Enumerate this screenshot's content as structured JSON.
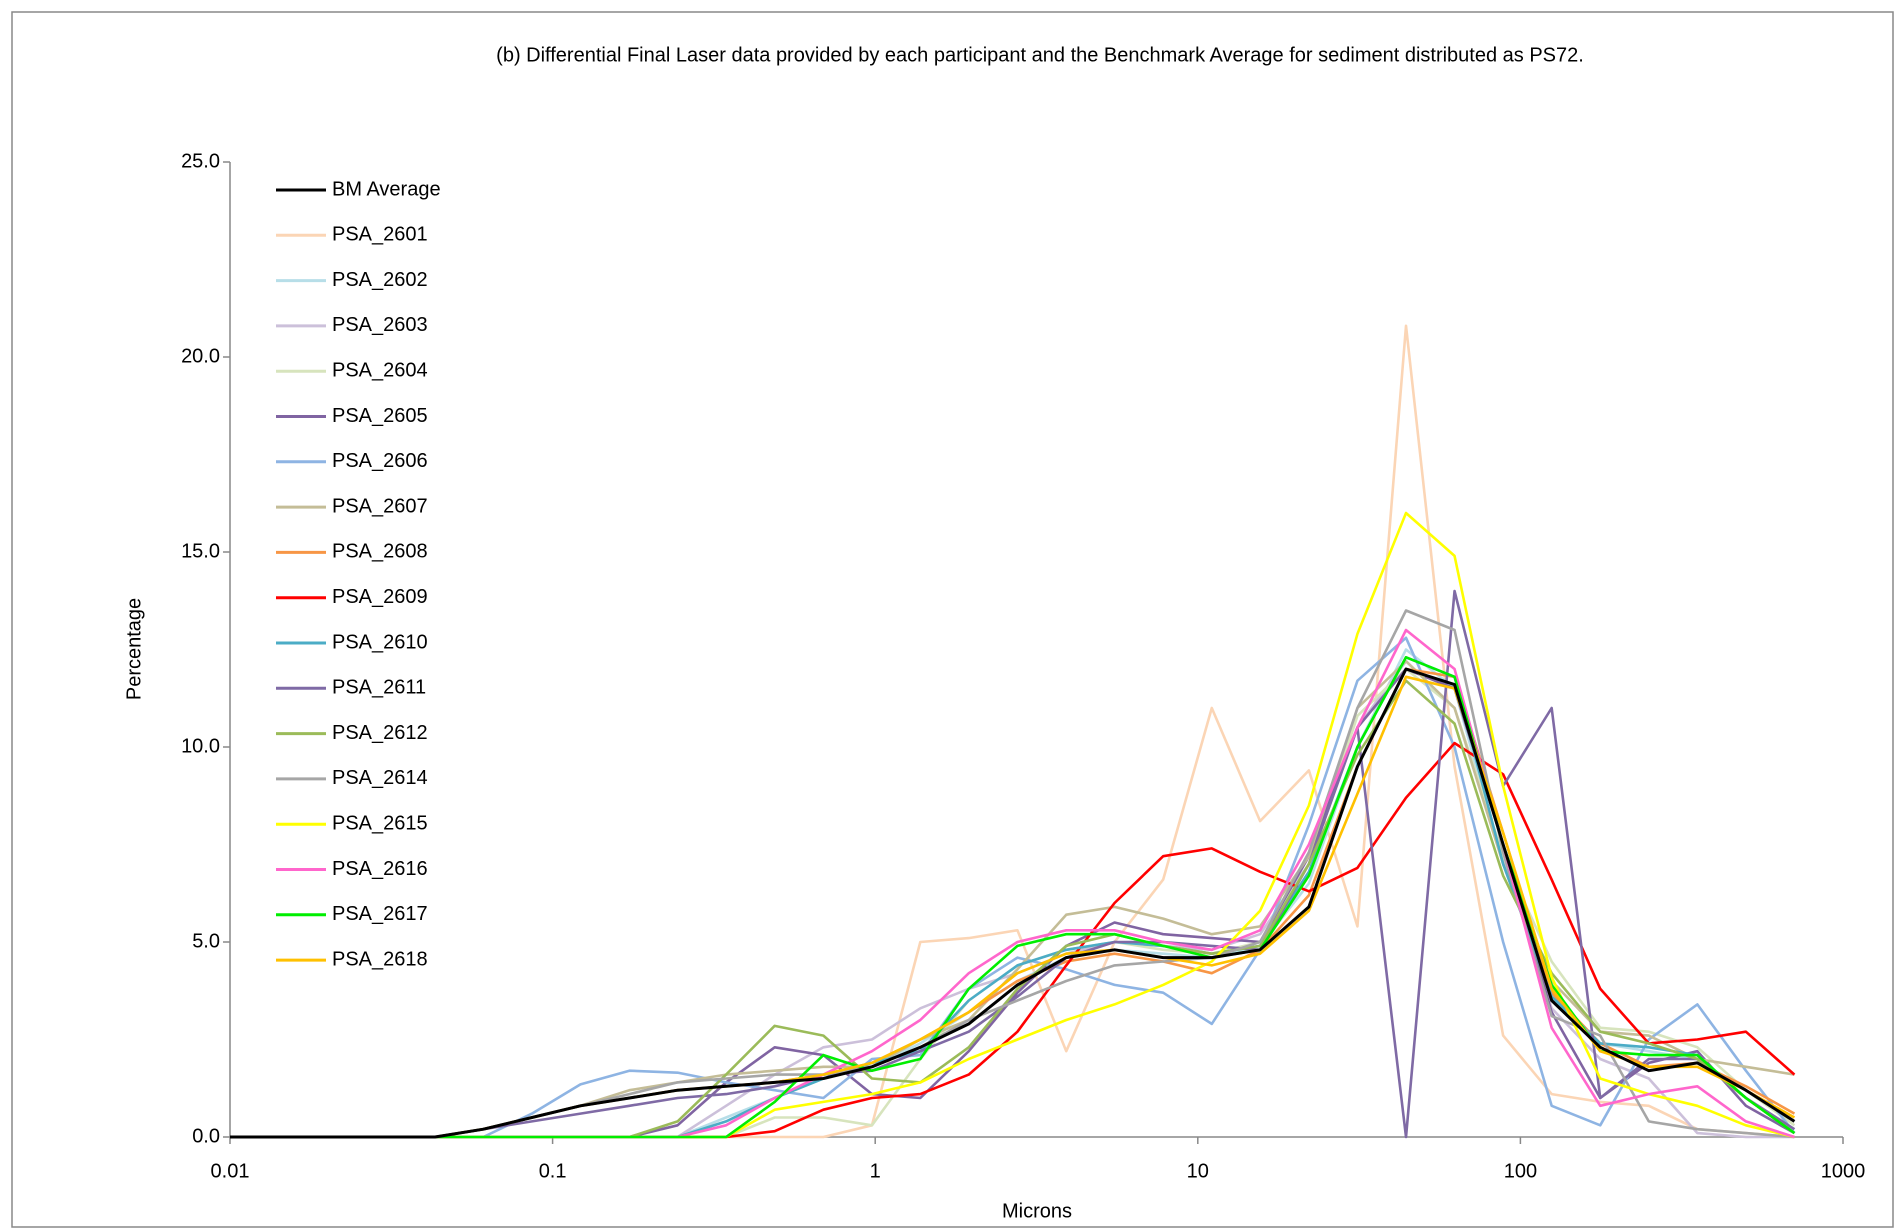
{
  "chart_data": {
    "type": "line",
    "title": "(b) Differential Final Laser data provided by each participant and the Benchmark Average for sediment distributed as PS72.",
    "xlabel": "Microns",
    "ylabel": "Percentage",
    "xscale": "log",
    "x": [
      0.01,
      0.0153,
      0.0216,
      0.0305,
      0.0432,
      0.061,
      0.0863,
      0.122,
      0.173,
      0.244,
      0.345,
      0.488,
      0.691,
      0.977,
      1.38,
      1.95,
      2.76,
      3.91,
      5.52,
      7.81,
      11.05,
      15.6,
      22.1,
      31.25,
      44.2,
      62.5,
      88.4,
      125,
      176.8,
      250,
      353.6,
      500,
      707.1
    ],
    "xlim": [
      0.01,
      1000
    ],
    "xticks": [
      0.01,
      0.1,
      1,
      10,
      100,
      1000
    ],
    "ylim": [
      0,
      25
    ],
    "yticks": [
      {
        "value": 0,
        "label": "0.0"
      },
      {
        "value": 5,
        "label": "5.0"
      },
      {
        "value": 10,
        "label": "10.0"
      },
      {
        "value": 15,
        "label": "15.0"
      },
      {
        "value": 20,
        "label": "20.0"
      },
      {
        "value": 25,
        "label": "25.0"
      }
    ],
    "legend": "upper left",
    "series": [
      {
        "name": "BM Average",
        "color": "#000000",
        "values": [
          0,
          0,
          0,
          0,
          0,
          0.2,
          0.5,
          0.8,
          1.0,
          1.2,
          1.3,
          1.4,
          1.5,
          1.8,
          2.3,
          2.9,
          3.9,
          4.6,
          4.8,
          4.6,
          4.6,
          4.8,
          5.9,
          9.5,
          12.0,
          11.6,
          7.5,
          3.5,
          2.3,
          1.7,
          1.9,
          1.2,
          0.4
        ]
      },
      {
        "name": "PSA_2601",
        "color": "#fbd5b5",
        "values": [
          0,
          0,
          0,
          0,
          0,
          0,
          0,
          0,
          0,
          0,
          0,
          0,
          0,
          0.3,
          5.0,
          5.1,
          5.3,
          2.2,
          5.0,
          6.6,
          11.0,
          8.1,
          9.4,
          5.4,
          20.8,
          9.5,
          2.6,
          1.1,
          0.9,
          0.8,
          0.2,
          0.1,
          0.0
        ]
      },
      {
        "name": "PSA_2602",
        "color": "#b7dee8",
        "values": [
          0,
          0,
          0,
          0,
          0,
          0,
          0,
          0,
          0,
          0,
          0.5,
          1.0,
          1.5,
          1.8,
          2.4,
          3.2,
          4.0,
          4.6,
          4.8,
          4.7,
          4.6,
          4.9,
          6.5,
          10.0,
          12.5,
          11.5,
          7.0,
          3.6,
          2.4,
          2.2,
          2.0,
          1.0,
          0.2
        ]
      },
      {
        "name": "PSA_2603",
        "color": "#ccc0da",
        "values": [
          0,
          0,
          0,
          0,
          0,
          0,
          0,
          0,
          0,
          0,
          0.8,
          1.6,
          2.3,
          2.5,
          3.3,
          3.8,
          4.2,
          4.7,
          5.0,
          4.9,
          4.8,
          5.2,
          7.0,
          10.5,
          12.2,
          11.0,
          7.2,
          3.3,
          2.0,
          1.5,
          0.1,
          0.0,
          0.0
        ]
      },
      {
        "name": "PSA_2604",
        "color": "#d7e4bd",
        "values": [
          0,
          0,
          0,
          0,
          0,
          0,
          0,
          0,
          0,
          0,
          0,
          0.5,
          0.5,
          0.3,
          2.0,
          3.5,
          4.4,
          4.8,
          5.0,
          4.8,
          4.7,
          5.0,
          7.0,
          10.8,
          12.0,
          11.0,
          7.2,
          4.5,
          2.8,
          2.7,
          2.3,
          1.2,
          0.3
        ]
      },
      {
        "name": "PSA_2605",
        "color": "#8064a2",
        "values": [
          0,
          0,
          0,
          0,
          0,
          0,
          0,
          0,
          0,
          0.3,
          1.4,
          2.3,
          2.1,
          1.1,
          1.0,
          2.2,
          3.7,
          4.9,
          5.5,
          5.2,
          5.1,
          5.0,
          7.2,
          10.5,
          12.0,
          11.5,
          7.5,
          3.2,
          1.0,
          1.9,
          2.2,
          0.8,
          0.1
        ]
      },
      {
        "name": "PSA_2606",
        "color": "#8eb4e3",
        "values": [
          0,
          0,
          0,
          0,
          0,
          0,
          0.6,
          1.35,
          1.7,
          1.65,
          1.4,
          1.2,
          1.0,
          2.0,
          2.1,
          3.8,
          4.6,
          4.3,
          3.9,
          3.7,
          2.9,
          4.8,
          8.0,
          11.7,
          12.8,
          10.0,
          5.0,
          0.8,
          0.3,
          2.5,
          3.4,
          1.7,
          0.1
        ]
      },
      {
        "name": "PSA_2607",
        "color": "#c4bd97",
        "values": [
          0,
          0,
          0,
          0,
          0,
          0.2,
          0.5,
          0.8,
          1.2,
          1.4,
          1.6,
          1.7,
          1.8,
          1.8,
          2.5,
          3.0,
          4.3,
          5.7,
          5.9,
          5.6,
          5.2,
          5.4,
          7.2,
          11.0,
          12.2,
          11.0,
          7.0,
          4.0,
          2.7,
          2.6,
          2.0,
          1.8,
          1.6
        ]
      },
      {
        "name": "PSA_2608",
        "color": "#f79646",
        "values": [
          0,
          0,
          0,
          0,
          0,
          0.2,
          0.5,
          0.8,
          1.0,
          1.2,
          1.3,
          1.4,
          1.6,
          1.9,
          2.5,
          3.2,
          4.0,
          4.5,
          4.7,
          4.5,
          4.2,
          4.8,
          6.2,
          9.5,
          12.0,
          11.8,
          7.8,
          3.7,
          2.4,
          1.8,
          1.9,
          1.3,
          0.6
        ]
      },
      {
        "name": "PSA_2609",
        "color": "#ff0000",
        "values": [
          0,
          0,
          0,
          0,
          0,
          0,
          0,
          0,
          0,
          0,
          0,
          0.15,
          0.7,
          1.0,
          1.1,
          1.6,
          2.7,
          4.4,
          6.0,
          7.2,
          7.4,
          6.8,
          6.3,
          6.9,
          8.7,
          10.1,
          9.3,
          6.6,
          3.8,
          2.4,
          2.5,
          2.7,
          1.6
        ]
      },
      {
        "name": "PSA_2610",
        "color": "#4bacc6",
        "values": [
          0,
          0,
          0,
          0,
          0,
          0,
          0,
          0,
          0,
          0,
          0.4,
          1.0,
          1.5,
          1.9,
          2.2,
          3.5,
          4.4,
          4.8,
          5.0,
          4.9,
          4.7,
          4.9,
          6.8,
          10.0,
          12.3,
          11.8,
          7.0,
          3.6,
          2.4,
          2.3,
          2.1,
          1.0,
          0.1
        ]
      },
      {
        "name": "PSA_2611",
        "color": "#7f6aa5",
        "values": [
          0,
          0,
          0,
          0,
          0,
          0.2,
          0.4,
          0.6,
          0.8,
          1.0,
          1.1,
          1.3,
          1.6,
          1.7,
          2.2,
          2.7,
          3.6,
          4.6,
          5.0,
          5.0,
          4.9,
          4.8,
          7.0,
          10.5,
          0.0,
          14.0,
          9.0,
          11.0,
          1.0,
          2.0,
          2.0,
          1.0,
          0.2
        ]
      },
      {
        "name": "PSA_2612",
        "color": "#9bbb59",
        "values": [
          0,
          0,
          0,
          0,
          0,
          0,
          0,
          0,
          0,
          0.4,
          1.6,
          2.85,
          2.6,
          1.5,
          1.4,
          2.3,
          3.8,
          4.9,
          5.2,
          4.9,
          4.7,
          4.9,
          7.0,
          9.8,
          11.7,
          10.6,
          6.7,
          4.2,
          2.7,
          2.4,
          2.0,
          1.0,
          0.1
        ]
      },
      {
        "name": "PSA_2614",
        "color": "#a6a6a6",
        "values": [
          0,
          0,
          0,
          0,
          0,
          0.2,
          0.5,
          0.8,
          1.1,
          1.4,
          1.5,
          1.6,
          1.6,
          1.8,
          2.3,
          3.0,
          3.5,
          4.0,
          4.4,
          4.5,
          4.6,
          5.0,
          7.3,
          11.0,
          13.5,
          13.0,
          7.3,
          3.1,
          2.6,
          0.4,
          0.2,
          0.1,
          0.0
        ]
      },
      {
        "name": "PSA_2615",
        "color": "#ffff00",
        "values": [
          0,
          0,
          0,
          0,
          0,
          0,
          0,
          0,
          0,
          0,
          0,
          0.7,
          0.9,
          1.1,
          1.4,
          2.0,
          2.5,
          3.0,
          3.4,
          3.9,
          4.5,
          5.8,
          8.5,
          12.9,
          16.0,
          14.9,
          9.0,
          4.1,
          1.5,
          1.1,
          0.8,
          0.3,
          0.0
        ]
      },
      {
        "name": "PSA_2616",
        "color": "#ff66cc",
        "values": [
          0,
          0,
          0,
          0,
          0,
          0,
          0,
          0,
          0,
          0,
          0.3,
          1.0,
          1.6,
          2.2,
          3.0,
          4.2,
          5.0,
          5.3,
          5.3,
          5.0,
          4.8,
          5.3,
          7.5,
          10.5,
          13.0,
          12.0,
          7.5,
          2.8,
          0.8,
          1.1,
          1.3,
          0.4,
          0.0
        ]
      },
      {
        "name": "PSA_2617",
        "color": "#00ee00",
        "values": [
          0,
          0,
          0,
          0,
          0,
          0,
          0,
          0,
          0,
          0,
          0,
          0.9,
          2.1,
          1.7,
          2.0,
          3.8,
          4.9,
          5.2,
          5.2,
          4.9,
          4.6,
          4.8,
          6.7,
          10.0,
          12.3,
          11.8,
          7.5,
          3.9,
          2.2,
          2.1,
          2.1,
          1.0,
          0.1
        ]
      },
      {
        "name": "PSA_2618",
        "color": "#ffc000",
        "values": [
          0,
          0,
          0,
          0,
          0,
          0.2,
          0.5,
          0.8,
          1.0,
          1.2,
          1.3,
          1.4,
          1.6,
          1.9,
          2.5,
          3.2,
          4.2,
          4.7,
          4.8,
          4.6,
          4.4,
          4.7,
          5.8,
          8.8,
          11.8,
          11.5,
          7.8,
          3.8,
          2.2,
          1.8,
          1.8,
          1.2,
          0.5
        ]
      }
    ]
  }
}
